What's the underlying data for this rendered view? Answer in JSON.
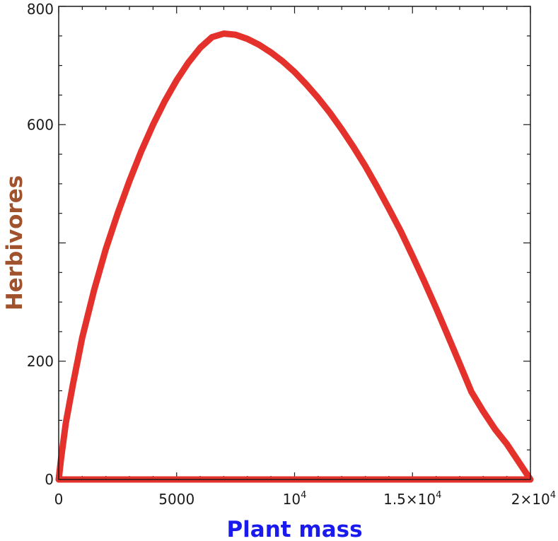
{
  "chart_data": {
    "type": "line",
    "title": "",
    "xlabel": "Plant mass",
    "ylabel": "Herbivores",
    "xlim": [
      0,
      20000
    ],
    "ylim": [
      0,
      800
    ],
    "xticks": [
      {
        "value": 0,
        "label": "0"
      },
      {
        "value": 5000,
        "label": "5000"
      },
      {
        "value": 10000,
        "label": "10",
        "exp": "4"
      },
      {
        "value": 15000,
        "label": "1.5×10",
        "exp": "4"
      },
      {
        "value": 20000,
        "label": "2×10",
        "exp": "4"
      }
    ],
    "yticks": [
      {
        "value": 0,
        "label": "0"
      },
      {
        "value": 200,
        "label": "200"
      },
      {
        "value": 600,
        "label": "600"
      },
      {
        "value": 800,
        "label": "800"
      }
    ],
    "grid": false,
    "colors": {
      "line": "#e5312b",
      "xlabel": "#1a1aee",
      "ylabel": "#a0522d",
      "frame": "#1a1a1a"
    },
    "series": [
      {
        "x": [
          0,
          100,
          300,
          600,
          1000,
          1500,
          2000,
          2500,
          3000,
          3500,
          4000,
          4500,
          5000,
          5500,
          6000,
          6500,
          7000,
          7500,
          8000,
          8500,
          9000,
          9500,
          10000,
          10500,
          11000,
          11500,
          12000,
          12500,
          13000,
          13500,
          14000,
          14500,
          15000,
          15500,
          16000,
          16500,
          17000,
          17500,
          18000,
          18500,
          19000,
          19500,
          20000,
          0
        ],
        "y": [
          0,
          35,
          95,
          160,
          240,
          320,
          390,
          450,
          505,
          555,
          600,
          640,
          675,
          705,
          730,
          748,
          754,
          752,
          745,
          735,
          722,
          707,
          689,
          668,
          645,
          620,
          592,
          562,
          530,
          495,
          458,
          420,
          378,
          335,
          290,
          243,
          196,
          148,
          115,
          85,
          60,
          30,
          0,
          0
        ]
      }
    ]
  }
}
